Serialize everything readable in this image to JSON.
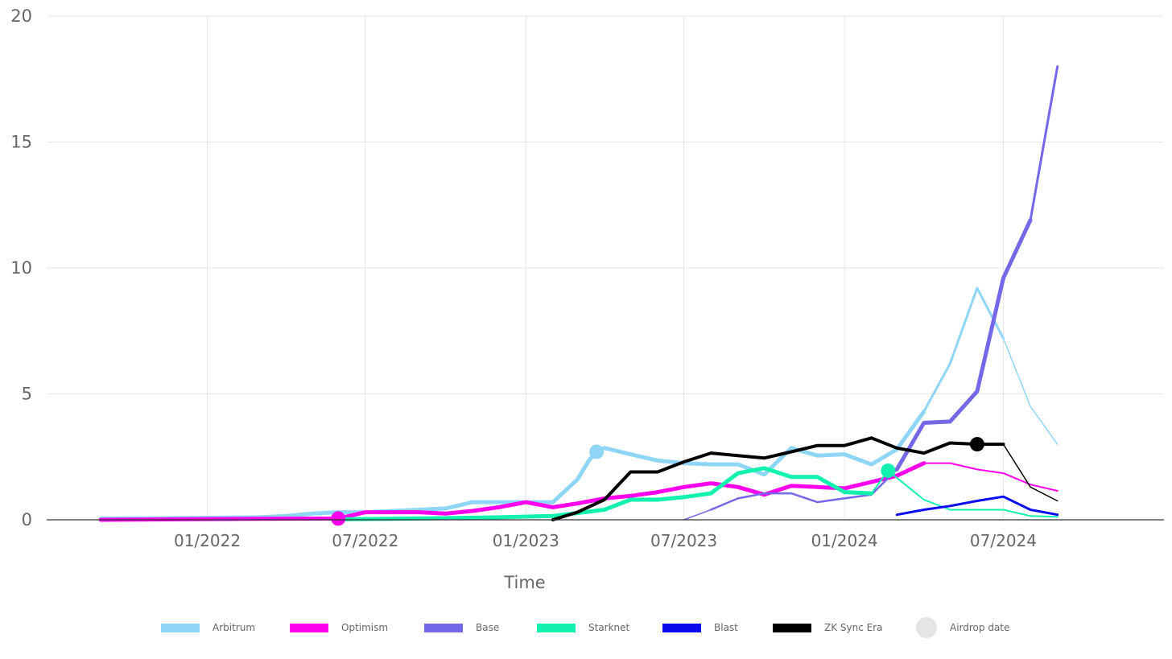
{
  "chart_data": {
    "type": "line",
    "title": "",
    "xlabel": "Time",
    "ylabel": "",
    "ylim": [
      0,
      20
    ],
    "y_ticks": [
      "0",
      "5",
      "10",
      "15",
      "20"
    ],
    "x_ticks": [
      {
        "date": "2022-01-01",
        "label": "01/2022"
      },
      {
        "date": "2022-07-01",
        "label": "07/2022"
      },
      {
        "date": "2023-01-01",
        "label": "01/2023"
      },
      {
        "date": "2023-07-01",
        "label": "07/2023"
      },
      {
        "date": "2024-01-01",
        "label": "01/2024"
      },
      {
        "date": "2024-07-01",
        "label": "07/2024"
      }
    ],
    "xlim": [
      "2021-07-01",
      "2025-01-01"
    ],
    "grid": true,
    "legend_position": "bottom",
    "series": [
      {
        "name": "Arbitrum",
        "color": "#8fd6f6",
        "airdrop": {
          "date": "2023-03-23",
          "value": 2.7
        },
        "points": [
          [
            "2021-09-01",
            0.05
          ],
          [
            "2021-11-01",
            0.06
          ],
          [
            "2022-01-01",
            0.08
          ],
          [
            "2022-03-01",
            0.1
          ],
          [
            "2022-04-01",
            0.15
          ],
          [
            "2022-05-01",
            0.25
          ],
          [
            "2022-06-01",
            0.3
          ],
          [
            "2022-07-01",
            0.3
          ],
          [
            "2022-08-01",
            0.35
          ],
          [
            "2022-09-01",
            0.4
          ],
          [
            "2022-10-01",
            0.45
          ],
          [
            "2022-11-01",
            0.7
          ],
          [
            "2022-12-01",
            0.7
          ],
          [
            "2023-01-01",
            0.7
          ],
          [
            "2023-02-01",
            0.7
          ],
          [
            "2023-03-01",
            1.6
          ],
          [
            "2023-03-15",
            2.4
          ],
          [
            "2023-03-23",
            2.7
          ],
          [
            "2023-04-01",
            2.85
          ],
          [
            "2023-05-01",
            2.6
          ],
          [
            "2023-06-01",
            2.35
          ],
          [
            "2023-07-01",
            2.25
          ],
          [
            "2023-08-01",
            2.2
          ],
          [
            "2023-09-01",
            2.2
          ],
          [
            "2023-10-01",
            1.8
          ],
          [
            "2023-11-01",
            2.85
          ],
          [
            "2023-12-01",
            2.55
          ],
          [
            "2024-01-01",
            2.6
          ],
          [
            "2024-02-01",
            2.2
          ],
          [
            "2024-03-01",
            2.8
          ],
          [
            "2024-04-01",
            4.3
          ],
          [
            "2024-05-01",
            6.2
          ],
          [
            "2024-06-01",
            9.2
          ],
          [
            "2024-07-01",
            7.2
          ],
          [
            "2024-08-01",
            4.5
          ],
          [
            "2024-09-01",
            3.0
          ]
        ],
        "widths": [
          [
            0,
            30,
            5
          ],
          [
            30,
            33,
            3
          ],
          [
            33,
            35,
            1.5
          ]
        ]
      },
      {
        "name": "Optimism",
        "color": "#ff00ee",
        "airdrop": {
          "date": "2022-05-31",
          "value": 0.05
        },
        "points": [
          [
            "2021-09-01",
            0.0
          ],
          [
            "2021-12-01",
            0.02
          ],
          [
            "2022-03-01",
            0.04
          ],
          [
            "2022-05-31",
            0.05
          ],
          [
            "2022-07-01",
            0.3
          ],
          [
            "2022-08-01",
            0.3
          ],
          [
            "2022-09-01",
            0.3
          ],
          [
            "2022-10-01",
            0.25
          ],
          [
            "2022-11-01",
            0.35
          ],
          [
            "2022-12-01",
            0.5
          ],
          [
            "2023-01-01",
            0.7
          ],
          [
            "2023-02-01",
            0.5
          ],
          [
            "2023-03-01",
            0.65
          ],
          [
            "2023-04-01",
            0.85
          ],
          [
            "2023-05-01",
            0.95
          ],
          [
            "2023-06-01",
            1.1
          ],
          [
            "2023-07-01",
            1.3
          ],
          [
            "2023-08-01",
            1.45
          ],
          [
            "2023-09-01",
            1.3
          ],
          [
            "2023-10-01",
            1.0
          ],
          [
            "2023-11-01",
            1.35
          ],
          [
            "2023-12-01",
            1.3
          ],
          [
            "2024-01-01",
            1.25
          ],
          [
            "2024-02-01",
            1.5
          ],
          [
            "2024-03-01",
            1.75
          ],
          [
            "2024-04-01",
            2.25
          ],
          [
            "2024-05-01",
            2.25
          ],
          [
            "2024-06-01",
            2.0
          ],
          [
            "2024-07-01",
            1.85
          ],
          [
            "2024-08-01",
            1.4
          ],
          [
            "2024-09-01",
            1.15
          ]
        ],
        "widths": [
          [
            0,
            25,
            5
          ],
          [
            25,
            30,
            2
          ]
        ]
      },
      {
        "name": "Base",
        "color": "#7468e8",
        "points": [
          [
            "2023-07-01",
            0.0
          ],
          [
            "2023-08-01",
            0.4
          ],
          [
            "2023-09-01",
            0.85
          ],
          [
            "2023-10-01",
            1.05
          ],
          [
            "2023-11-01",
            1.05
          ],
          [
            "2023-12-01",
            0.7
          ],
          [
            "2024-01-01",
            0.85
          ],
          [
            "2024-02-01",
            1.0
          ],
          [
            "2024-03-01",
            2.0
          ],
          [
            "2024-04-01",
            3.85
          ],
          [
            "2024-05-01",
            3.9
          ],
          [
            "2024-06-01",
            5.1
          ],
          [
            "2024-07-01",
            9.6
          ],
          [
            "2024-08-01",
            11.9
          ],
          [
            "2024-09-01",
            18.0
          ]
        ],
        "widths": [
          [
            0,
            1,
            1.5
          ],
          [
            1,
            8,
            2.5
          ],
          [
            8,
            13,
            5
          ],
          [
            13,
            14,
            3
          ]
        ]
      },
      {
        "name": "Starknet",
        "color": "#12f2ae",
        "airdrop": {
          "date": "2024-02-20",
          "value": 1.95
        },
        "points": [
          [
            "2022-06-01",
            0.02
          ],
          [
            "2022-09-01",
            0.05
          ],
          [
            "2022-12-01",
            0.1
          ],
          [
            "2023-02-01",
            0.15
          ],
          [
            "2023-04-01",
            0.4
          ],
          [
            "2023-05-01",
            0.8
          ],
          [
            "2023-06-01",
            0.8
          ],
          [
            "2023-07-01",
            0.9
          ],
          [
            "2023-08-01",
            1.05
          ],
          [
            "2023-09-01",
            1.85
          ],
          [
            "2023-10-01",
            2.05
          ],
          [
            "2023-11-01",
            1.7
          ],
          [
            "2023-12-01",
            1.7
          ],
          [
            "2024-01-01",
            1.1
          ],
          [
            "2024-02-01",
            1.05
          ],
          [
            "2024-02-20",
            1.95
          ],
          [
            "2024-04-01",
            0.8
          ],
          [
            "2024-05-01",
            0.4
          ],
          [
            "2024-06-01",
            0.4
          ],
          [
            "2024-07-01",
            0.4
          ],
          [
            "2024-08-01",
            0.15
          ],
          [
            "2024-09-01",
            0.12
          ]
        ],
        "widths": [
          [
            0,
            14,
            5
          ],
          [
            14,
            21,
            2
          ]
        ]
      },
      {
        "name": "Blast",
        "color": "#0a0aee",
        "points": [
          [
            "2024-03-01",
            0.2
          ],
          [
            "2024-04-01",
            0.4
          ],
          [
            "2024-05-01",
            0.55
          ],
          [
            "2024-06-01",
            0.75
          ],
          [
            "2024-07-01",
            0.92
          ],
          [
            "2024-08-01",
            0.4
          ],
          [
            "2024-09-01",
            0.2
          ]
        ],
        "widths": [
          [
            0,
            6,
            3
          ]
        ]
      },
      {
        "name": "ZK Sync Era",
        "color": "#000000",
        "airdrop": {
          "date": "2024-06-01",
          "value": 3.0
        },
        "points": [
          [
            "2023-02-01",
            0.0
          ],
          [
            "2023-03-01",
            0.3
          ],
          [
            "2023-04-01",
            0.8
          ],
          [
            "2023-05-01",
            1.9
          ],
          [
            "2023-06-01",
            1.9
          ],
          [
            "2023-07-01",
            2.3
          ],
          [
            "2023-08-01",
            2.65
          ],
          [
            "2023-09-01",
            2.55
          ],
          [
            "2023-10-01",
            2.45
          ],
          [
            "2023-11-01",
            2.7
          ],
          [
            "2023-12-01",
            2.95
          ],
          [
            "2024-01-01",
            2.95
          ],
          [
            "2024-02-01",
            3.25
          ],
          [
            "2024-03-01",
            2.85
          ],
          [
            "2024-04-01",
            2.65
          ],
          [
            "2024-05-01",
            3.05
          ],
          [
            "2024-06-01",
            3.0
          ],
          [
            "2024-07-01",
            3.0
          ],
          [
            "2024-08-01",
            1.3
          ],
          [
            "2024-09-01",
            0.75
          ]
        ],
        "widths": [
          [
            0,
            17,
            4
          ],
          [
            17,
            19,
            1.5
          ]
        ]
      }
    ],
    "legend": [
      {
        "label": "Arbitrum",
        "color": "#8fd6f6",
        "kind": "line"
      },
      {
        "label": "Optimism",
        "color": "#ff00ee",
        "kind": "line"
      },
      {
        "label": "Base",
        "color": "#7468e8",
        "kind": "line"
      },
      {
        "label": "Starknet",
        "color": "#12f2ae",
        "kind": "line"
      },
      {
        "label": "Blast",
        "color": "#0a0aee",
        "kind": "line"
      },
      {
        "label": "ZK Sync Era",
        "color": "#000000",
        "kind": "line"
      },
      {
        "label": "Airdrop date",
        "color": "#e5e5e5",
        "kind": "dot"
      }
    ]
  }
}
